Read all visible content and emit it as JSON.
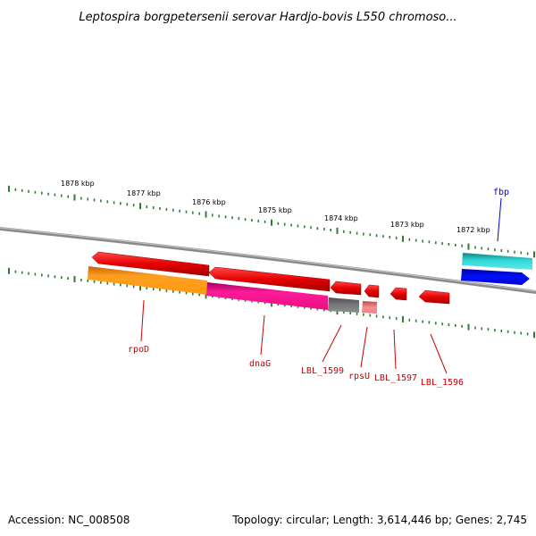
{
  "title": "Leptospira borgpetersenii serovar Hardjo-bovis L550 chromoso...",
  "footer": {
    "accession": "Accession: NC_008508",
    "topology": "Topology: circular; Length: 3,614,446 bp; Genes: 2,745"
  },
  "scale_labels": [
    "1878 kbp",
    "1877 kbp",
    "1876 kbp",
    "1875 kbp",
    "1874 kbp",
    "1873 kbp",
    "1872 kbp"
  ],
  "genes": [
    {
      "name": "rpoD",
      "label_color": "#cc0000",
      "strand": "minus"
    },
    {
      "name": "dnaG",
      "label_color": "#cc0000",
      "strand": "minus"
    },
    {
      "name": "LBL_1599",
      "label_color": "#cc0000",
      "strand": "minus"
    },
    {
      "name": "rpsU",
      "label_color": "#cc0000",
      "strand": "minus"
    },
    {
      "name": "LBL_1597",
      "label_color": "#cc0000",
      "strand": "minus"
    },
    {
      "name": "LBL_1596",
      "label_color": "#cc0000",
      "strand": "minus"
    },
    {
      "name": "fbp",
      "label_color": "#0000cc",
      "strand": "plus"
    }
  ],
  "colors": {
    "backbone": "#808080",
    "ticks": "#2e7d32",
    "gene_red": "#ee0000",
    "orange": "#ff9a1a",
    "magenta": "#ee1493",
    "gray": "#707070",
    "pink": "#f28080",
    "cyan": "#20c8c8",
    "blue": "#0000ee"
  }
}
